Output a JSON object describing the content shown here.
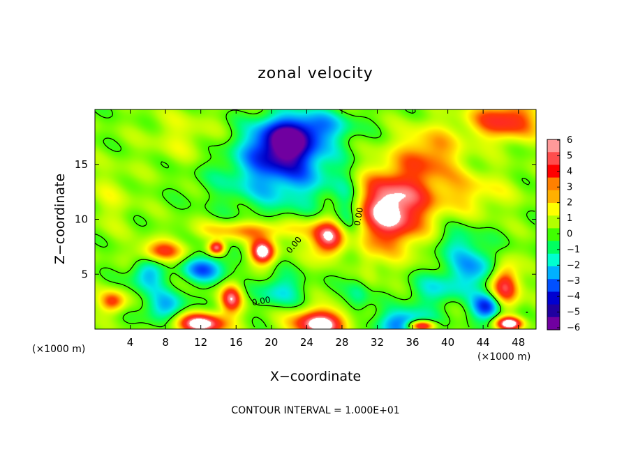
{
  "chart_data": {
    "type": "heatmap",
    "title": "zonal velocity",
    "xlabel": "X−coordinate",
    "ylabel": "Z−coordinate",
    "x_unit_left": "(×1000 m)",
    "x_unit_right": "(×1000 m)",
    "footer": "CONTOUR INTERVAL = 1.000E+01",
    "xlim": [
      0,
      50
    ],
    "ylim": [
      0,
      20
    ],
    "x_ticks": [
      {
        "value": 4,
        "label": "4"
      },
      {
        "value": 8,
        "label": "8"
      },
      {
        "value": 12,
        "label": "12"
      },
      {
        "value": 16,
        "label": "16"
      },
      {
        "value": 20,
        "label": "20"
      },
      {
        "value": 24,
        "label": "24"
      },
      {
        "value": 28,
        "label": "28"
      },
      {
        "value": 32,
        "label": "32"
      },
      {
        "value": 36,
        "label": "36"
      },
      {
        "value": 40,
        "label": "40"
      },
      {
        "value": 44,
        "label": "44"
      },
      {
        "value": 48,
        "label": "48"
      }
    ],
    "y_ticks": [
      {
        "value": 5,
        "label": "5"
      },
      {
        "value": 10,
        "label": "10"
      },
      {
        "value": 15,
        "label": "15"
      }
    ],
    "colorbar": {
      "min": -6,
      "max": 6,
      "labels": [
        "6",
        "5",
        "4",
        "3",
        "2",
        "1",
        "0",
        "−1",
        "−2",
        "−3",
        "−4",
        "−5",
        "−6"
      ],
      "colors": [
        "#ff9999",
        "#ff4d4d",
        "#ff0000",
        "#ff8000",
        "#ffb000",
        "#ffff00",
        "#b3ff00",
        "#40ff00",
        "#00ff60",
        "#00ffd0",
        "#00b0ff",
        "#0050ff",
        "#0000d0",
        "#2000a0",
        "#7000a0"
      ]
    },
    "contour_labels": [
      {
        "text": "0.00",
        "x": 22.8,
        "z": 7.5,
        "angle": -50
      },
      {
        "text": "0.00",
        "x": 30.2,
        "z": 10.2,
        "angle": -80
      },
      {
        "text": "0.00",
        "x": 18.9,
        "z": 2.3,
        "angle": -10
      }
    ],
    "features": [
      {
        "x": 21.5,
        "z": 17.0,
        "u": -6.0,
        "sx": 3.8,
        "sz": 2.3
      },
      {
        "x": 21.0,
        "z": 14.0,
        "u": -3.2,
        "sx": 7.0,
        "sz": 3.2
      },
      {
        "x": 25.5,
        "z": 18.5,
        "u": -2.5,
        "sx": 4.0,
        "sz": 1.5
      },
      {
        "x": 10.0,
        "z": 17.5,
        "u": 1.2,
        "sx": 4.0,
        "sz": 2.5
      },
      {
        "x": 33.5,
        "z": 11.0,
        "u": 6.5,
        "sx": 4.2,
        "sz": 3.6
      },
      {
        "x": 26.5,
        "z": 8.3,
        "u": 6.0,
        "sx": 2.0,
        "sz": 1.7
      },
      {
        "x": 28.5,
        "z": 10.0,
        "u": -3.0,
        "sx": 1.6,
        "sz": 3.2
      },
      {
        "x": 31.0,
        "z": 5.5,
        "u": 1.0,
        "sx": 1.2,
        "sz": 3.0
      },
      {
        "x": 46.5,
        "z": 19.0,
        "u": 4.5,
        "sx": 4.0,
        "sz": 1.8
      },
      {
        "x": 38.0,
        "z": 16.0,
        "u": 3.0,
        "sx": 3.5,
        "sz": 2.5
      },
      {
        "x": 42.0,
        "z": 12.5,
        "u": 2.0,
        "sx": 5.0,
        "sz": 2.0
      },
      {
        "x": 7.5,
        "z": 7.0,
        "u": 4.0,
        "sx": 2.5,
        "sz": 1.0
      },
      {
        "x": 18.0,
        "z": 9.0,
        "u": 3.0,
        "sx": 6.0,
        "sz": 0.9
      },
      {
        "x": 19.0,
        "z": 7.0,
        "u": 6.5,
        "sx": 1.4,
        "sz": 1.1
      },
      {
        "x": 13.8,
        "z": 7.4,
        "u": 5.5,
        "sx": 0.9,
        "sz": 0.6
      },
      {
        "x": 12.5,
        "z": 5.5,
        "u": -4.0,
        "sx": 2.5,
        "sz": 1.2
      },
      {
        "x": 6.0,
        "z": 5.0,
        "u": -3.0,
        "sx": 2.0,
        "sz": 1.5
      },
      {
        "x": 15.5,
        "z": 2.8,
        "u": 5.0,
        "sx": 1.2,
        "sz": 1.3
      },
      {
        "x": 2.0,
        "z": 2.5,
        "u": 4.0,
        "sx": 1.5,
        "sz": 1.0
      },
      {
        "x": 12.0,
        "z": 0.5,
        "u": 6.5,
        "sx": 3.0,
        "sz": 1.0
      },
      {
        "x": 25.5,
        "z": 0.5,
        "u": 6.5,
        "sx": 3.2,
        "sz": 1.3
      },
      {
        "x": 35.0,
        "z": 0.5,
        "u": -4.0,
        "sx": 3.0,
        "sz": 1.3
      },
      {
        "x": 37.0,
        "z": 0.3,
        "u": 6.5,
        "sx": 1.5,
        "sz": 0.5
      },
      {
        "x": 43.0,
        "z": 5.5,
        "u": -3.0,
        "sx": 3.5,
        "sz": 2.0
      },
      {
        "x": 46.5,
        "z": 4.0,
        "u": 5.5,
        "sx": 1.6,
        "sz": 2.2
      },
      {
        "x": 44.5,
        "z": 2.0,
        "u": -5.0,
        "sx": 1.8,
        "sz": 1.2
      },
      {
        "x": 47.0,
        "z": 0.5,
        "u": 6.5,
        "sx": 1.5,
        "sz": 0.6
      },
      {
        "x": 38.5,
        "z": 3.5,
        "u": -2.0,
        "sx": 3.0,
        "sz": 1.5
      },
      {
        "x": 21.0,
        "z": 3.5,
        "u": -2.5,
        "sx": 2.5,
        "sz": 1.5
      },
      {
        "x": 8.0,
        "z": 2.0,
        "u": -3.0,
        "sx": 2.5,
        "sz": 1.5
      },
      {
        "x": 41.0,
        "z": 8.0,
        "u": -1.5,
        "sx": 3.0,
        "sz": 1.5
      },
      {
        "x": 2.0,
        "z": 12.0,
        "u": 1.0,
        "sx": 2.5,
        "sz": 3.0
      },
      {
        "x": 30.0,
        "z": 3.0,
        "u": -2.0,
        "sx": 1.5,
        "sz": 2.0
      }
    ],
    "background_u": 0.4
  }
}
